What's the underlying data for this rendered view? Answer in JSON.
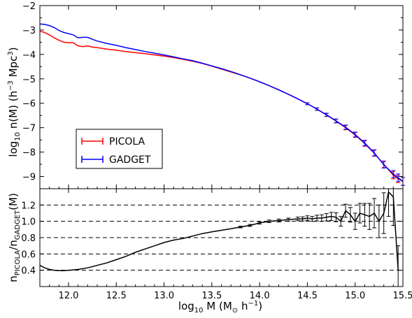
{
  "chart_data": [
    {
      "type": "line",
      "panel": "top",
      "ylabel": "log10 n(M) (h^-3 Mpc^3)",
      "xlim": [
        11.7,
        15.5
      ],
      "ylim": [
        -9.5,
        -2
      ],
      "yticks": [
        "-2",
        "-3",
        "-4",
        "-5",
        "-6",
        "-7",
        "-8",
        "-9"
      ],
      "legend": {
        "placement": "lower-left"
      },
      "colors": {
        "PICOLA": "#ff0000",
        "GADGET": "#0000ff"
      },
      "series": [
        {
          "name": "PICOLA",
          "x": [
            11.7,
            11.75,
            11.8,
            11.85,
            11.9,
            11.95,
            12.0,
            12.05,
            12.1,
            12.15,
            12.2,
            12.25,
            12.3,
            12.4,
            12.5,
            12.6,
            12.7,
            12.8,
            12.9,
            13.0,
            13.1,
            13.2,
            13.3,
            13.4,
            13.5,
            13.6,
            13.7,
            13.8,
            13.9,
            14.0,
            14.1,
            14.2,
            14.3,
            14.4,
            14.5,
            14.6,
            14.7,
            14.8,
            14.9,
            15.0,
            15.1,
            15.2,
            15.3,
            15.4,
            15.45,
            15.5
          ],
          "y": [
            -3.05,
            -3.1,
            -3.2,
            -3.32,
            -3.42,
            -3.5,
            -3.52,
            -3.52,
            -3.65,
            -3.68,
            -3.65,
            -3.7,
            -3.72,
            -3.78,
            -3.83,
            -3.88,
            -3.93,
            -3.97,
            -4.02,
            -4.07,
            -4.13,
            -4.2,
            -4.28,
            -4.37,
            -4.48,
            -4.6,
            -4.72,
            -4.84,
            -4.97,
            -5.12,
            -5.28,
            -5.45,
            -5.63,
            -5.82,
            -6.02,
            -6.24,
            -6.48,
            -6.73,
            -7.0,
            -7.3,
            -7.65,
            -8.05,
            -8.5,
            -8.95,
            -9.1,
            -9.2
          ]
        },
        {
          "name": "GADGET",
          "x": [
            11.7,
            11.75,
            11.8,
            11.85,
            11.9,
            11.95,
            12.0,
            12.05,
            12.1,
            12.15,
            12.2,
            12.25,
            12.3,
            12.4,
            12.5,
            12.6,
            12.7,
            12.8,
            12.9,
            13.0,
            13.1,
            13.2,
            13.3,
            13.4,
            13.5,
            13.6,
            13.7,
            13.8,
            13.9,
            14.0,
            14.1,
            14.2,
            14.3,
            14.4,
            14.5,
            14.6,
            14.7,
            14.8,
            14.9,
            15.0,
            15.1,
            15.2,
            15.3,
            15.4,
            15.45,
            15.5
          ],
          "y": [
            -2.75,
            -2.77,
            -2.82,
            -2.9,
            -3.02,
            -3.1,
            -3.15,
            -3.2,
            -3.32,
            -3.3,
            -3.3,
            -3.38,
            -3.45,
            -3.55,
            -3.63,
            -3.72,
            -3.8,
            -3.88,
            -3.95,
            -4.02,
            -4.1,
            -4.18,
            -4.26,
            -4.36,
            -4.47,
            -4.58,
            -4.7,
            -4.83,
            -4.97,
            -5.12,
            -5.28,
            -5.45,
            -5.63,
            -5.82,
            -6.02,
            -6.24,
            -6.47,
            -6.72,
            -6.98,
            -7.28,
            -7.63,
            -8.03,
            -8.52,
            -8.9,
            -9.05,
            -9.2
          ]
        }
      ]
    },
    {
      "type": "line",
      "panel": "bottom",
      "xlabel": "log10 M (M⊙ h^-1)",
      "ylabel": "n_PICOLA / n_GADGET (M)",
      "xlim": [
        11.7,
        15.5
      ],
      "ylim": [
        0.2,
        1.4
      ],
      "grid": "dashed horizontal lines at 0.4, 0.6, 0.8, 1.0, 1.2",
      "xticks": [
        "12.0",
        "12.5",
        "13.0",
        "13.5",
        "14.0",
        "14.5",
        "15.0",
        "15.5"
      ],
      "yticks": [
        "0.4",
        "0.6",
        "0.8",
        "1.0",
        "1.2"
      ],
      "series": [
        {
          "name": "ratio",
          "color": "#000000",
          "x": [
            11.7,
            11.75,
            11.8,
            11.85,
            11.9,
            11.95,
            12.0,
            12.1,
            12.2,
            12.3,
            12.4,
            12.5,
            12.6,
            12.7,
            12.8,
            12.9,
            13.0,
            13.1,
            13.2,
            13.3,
            13.4,
            13.5,
            13.6,
            13.7,
            13.8,
            13.9,
            14.0,
            14.1,
            14.2,
            14.3,
            14.4,
            14.45,
            14.5,
            14.55,
            14.6,
            14.65,
            14.7,
            14.75,
            14.8,
            14.85,
            14.9,
            14.95,
            15.0,
            15.05,
            15.1,
            15.15,
            15.2,
            15.25,
            15.3,
            15.35,
            15.4,
            15.45
          ],
          "y": [
            0.46,
            0.43,
            0.41,
            0.4,
            0.395,
            0.395,
            0.4,
            0.41,
            0.43,
            0.46,
            0.49,
            0.53,
            0.57,
            0.62,
            0.66,
            0.7,
            0.74,
            0.77,
            0.79,
            0.82,
            0.85,
            0.87,
            0.89,
            0.91,
            0.93,
            0.95,
            0.98,
            1.0,
            1.01,
            1.02,
            1.03,
            1.03,
            1.04,
            1.03,
            1.04,
            1.04,
            1.05,
            1.06,
            1.05,
            1.0,
            1.13,
            1.08,
            1.0,
            1.1,
            1.08,
            1.06,
            1.1,
            1.0,
            1.1,
            1.36,
            1.3,
            0.4
          ],
          "yerr": [
            0.005,
            0.005,
            0.005,
            0.005,
            0.005,
            0.005,
            0.005,
            0.005,
            0.005,
            0.005,
            0.005,
            0.005,
            0.005,
            0.005,
            0.005,
            0.005,
            0.005,
            0.005,
            0.005,
            0.005,
            0.005,
            0.005,
            0.006,
            0.008,
            0.01,
            0.012,
            0.014,
            0.016,
            0.018,
            0.02,
            0.022,
            0.025,
            0.028,
            0.03,
            0.035,
            0.04,
            0.045,
            0.05,
            0.055,
            0.06,
            0.08,
            0.09,
            0.1,
            0.12,
            0.14,
            0.16,
            0.18,
            0.2,
            0.25,
            0.3,
            0.35,
            0.3
          ]
        }
      ]
    }
  ],
  "legend": {
    "items": [
      {
        "name": "PICOLA",
        "color": "#ff0000"
      },
      {
        "name": "GADGET",
        "color": "#0000ff"
      }
    ]
  }
}
